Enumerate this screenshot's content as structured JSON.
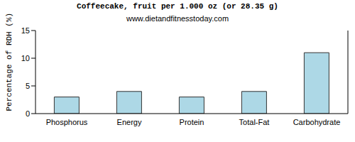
{
  "chart_data": {
    "type": "bar",
    "title": "Coffeecake, fruit per 1.000 oz (or 28.35 g)",
    "subtitle": "www.dietandfitnesstoday.com",
    "y_label": "Percentage of RDH (%)",
    "categories": [
      "Phosphorus",
      "Energy",
      "Protein",
      "Total-Fat",
      "Carbohydrate"
    ],
    "values": [
      3,
      4,
      3,
      4,
      11
    ],
    "color": "#add8e6",
    "ylim": [
      0,
      15
    ],
    "yticks": [
      0,
      5,
      10,
      15
    ],
    "grid": false
  }
}
